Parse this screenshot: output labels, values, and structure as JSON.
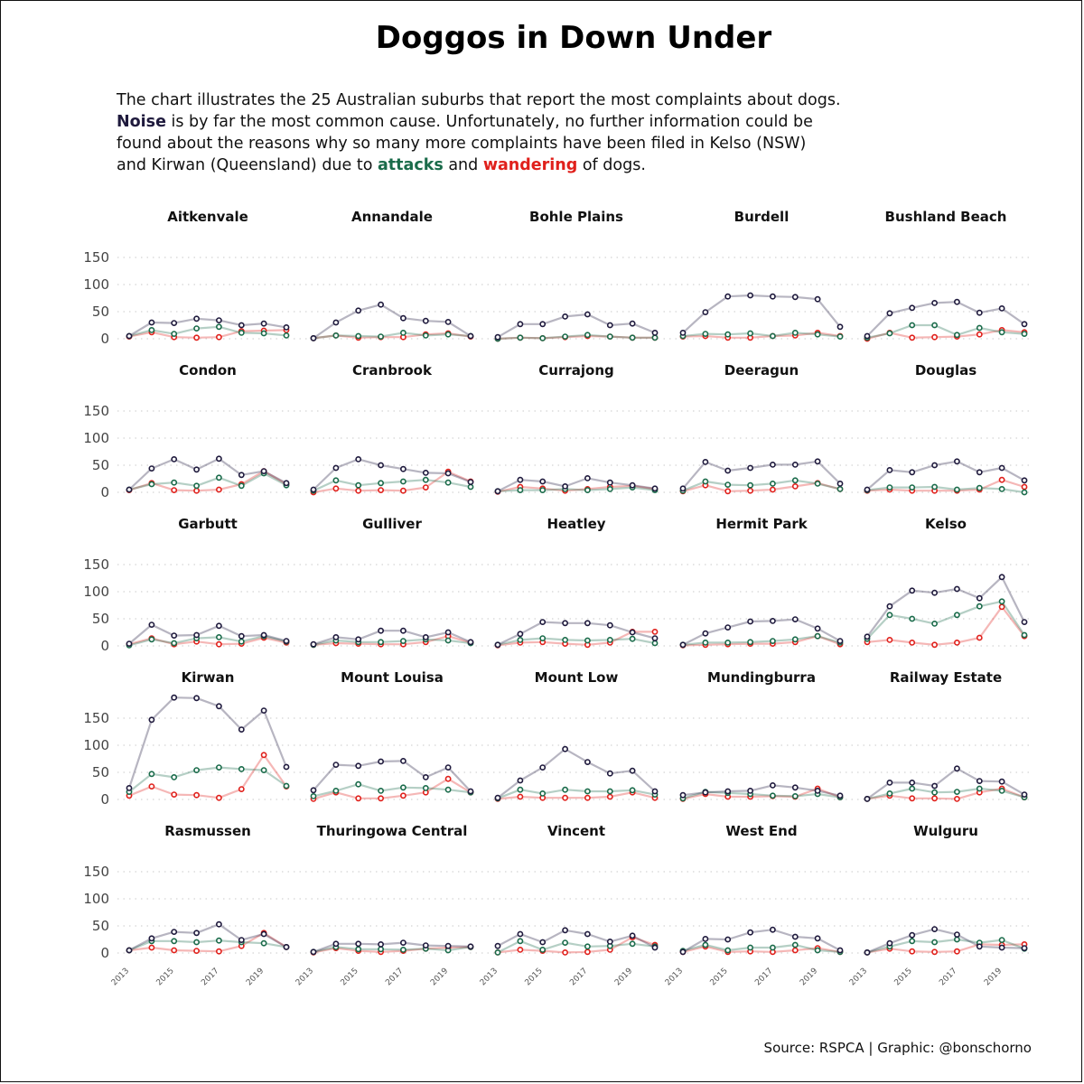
{
  "title": "Doggos in Down Under",
  "subtitle": {
    "line1": "The chart illustrates the 25 Australian suburbs that report the most complaints about dogs.",
    "noise": "Noise",
    "line2_rest": " is by far the most common cause. Unfortunately, no further information could be",
    "line3": "found about the reasons why so many more complaints have been filed in Kelso (NSW)",
    "line4_a": "and Kirwan (Queensland) due to ",
    "attacks": "attacks",
    "line4_b": " and ",
    "wandering": "wandering",
    "line4_c": " of dogs."
  },
  "caption": "Source: RSPCA | Graphic: @bonschorno",
  "colors": {
    "noise": "#1f1a3d",
    "attacks": "#1a6b4a",
    "wandering": "#e0201b",
    "grid": "#d4d4d4"
  },
  "chart_data": {
    "type": "line",
    "x": [
      2013,
      2014,
      2015,
      2016,
      2017,
      2018,
      2019,
      2020
    ],
    "x_tick_labels": [
      "2013",
      "2015",
      "2017",
      "2019"
    ],
    "ylim": [
      0,
      190
    ],
    "y_ticks": [
      0,
      50,
      100,
      150
    ],
    "grid": "horizontal dotted",
    "series_order": [
      "noise",
      "attacks",
      "wandering"
    ],
    "panels": [
      {
        "name": "Aitkenvale",
        "noise": [
          5,
          30,
          29,
          37,
          34,
          25,
          28,
          21
        ],
        "attacks": [
          5,
          16,
          9,
          19,
          22,
          11,
          10,
          6
        ],
        "wandering": [
          4,
          12,
          3,
          2,
          3,
          14,
          15,
          16
        ]
      },
      {
        "name": "Annandale",
        "noise": [
          1,
          30,
          52,
          63,
          38,
          33,
          31,
          5
        ],
        "attacks": [
          1,
          6,
          5,
          4,
          11,
          6,
          8,
          5
        ],
        "wandering": [
          1,
          6,
          2,
          3,
          3,
          8,
          10,
          4
        ]
      },
      {
        "name": "Bohle Plains",
        "noise": [
          3,
          27,
          27,
          41,
          45,
          25,
          28,
          11
        ],
        "attacks": [
          0,
          2,
          1,
          4,
          7,
          4,
          2,
          2
        ],
        "wandering": [
          0,
          2,
          1,
          3,
          5,
          4,
          2,
          2
        ]
      },
      {
        "name": "Burdell",
        "noise": [
          11,
          49,
          78,
          80,
          78,
          77,
          73,
          22
        ],
        "attacks": [
          5,
          9,
          8,
          10,
          5,
          11,
          8,
          4
        ],
        "wandering": [
          4,
          5,
          2,
          2,
          5,
          6,
          11,
          5
        ]
      },
      {
        "name": "Bushland Beach",
        "noise": [
          5,
          47,
          57,
          66,
          68,
          48,
          56,
          27
        ],
        "attacks": [
          2,
          10,
          25,
          25,
          7,
          20,
          12,
          9
        ],
        "wandering": [
          0,
          11,
          2,
          3,
          4,
          8,
          16,
          12
        ]
      },
      {
        "name": "Condon",
        "noise": [
          5,
          44,
          61,
          42,
          62,
          32,
          39,
          17
        ],
        "attacks": [
          5,
          15,
          18,
          12,
          27,
          12,
          35,
          13
        ],
        "wandering": [
          4,
          17,
          4,
          3,
          5,
          15,
          39,
          15
        ]
      },
      {
        "name": "Cranbrook",
        "noise": [
          5,
          45,
          61,
          50,
          43,
          36,
          35,
          19
        ],
        "attacks": [
          3,
          22,
          13,
          17,
          20,
          23,
          18,
          10
        ],
        "wandering": [
          0,
          7,
          3,
          4,
          3,
          9,
          38,
          20
        ]
      },
      {
        "name": "Currajong",
        "noise": [
          2,
          23,
          20,
          11,
          26,
          18,
          13,
          7
        ],
        "attacks": [
          2,
          4,
          4,
          6,
          4,
          6,
          9,
          4
        ],
        "wandering": [
          1,
          10,
          7,
          3,
          6,
          10,
          12,
          6
        ]
      },
      {
        "name": "Deeragun",
        "noise": [
          7,
          56,
          40,
          45,
          51,
          51,
          57,
          16
        ],
        "attacks": [
          3,
          20,
          14,
          13,
          16,
          22,
          16,
          6
        ],
        "wandering": [
          2,
          13,
          2,
          3,
          5,
          11,
          17,
          6
        ]
      },
      {
        "name": "Douglas",
        "noise": [
          5,
          41,
          37,
          50,
          57,
          37,
          45,
          22
        ],
        "attacks": [
          4,
          9,
          9,
          10,
          5,
          8,
          6,
          0
        ],
        "wandering": [
          3,
          5,
          3,
          3,
          3,
          5,
          23,
          10
        ]
      },
      {
        "name": "Garbutt",
        "noise": [
          4,
          39,
          19,
          20,
          37,
          18,
          20,
          9
        ],
        "attacks": [
          1,
          12,
          5,
          14,
          16,
          8,
          18,
          8
        ],
        "wandering": [
          3,
          14,
          3,
          8,
          3,
          4,
          15,
          6
        ]
      },
      {
        "name": "Gulliver",
        "noise": [
          3,
          16,
          12,
          28,
          28,
          16,
          25,
          7
        ],
        "attacks": [
          2,
          10,
          7,
          7,
          9,
          12,
          10,
          5
        ],
        "wandering": [
          2,
          5,
          4,
          3,
          3,
          7,
          18,
          6
        ]
      },
      {
        "name": "Heatley",
        "noise": [
          2,
          22,
          44,
          42,
          42,
          38,
          25,
          14
        ],
        "attacks": [
          2,
          11,
          14,
          11,
          10,
          11,
          13,
          5
        ],
        "wandering": [
          1,
          6,
          7,
          4,
          2,
          6,
          26,
          26
        ]
      },
      {
        "name": "Hermit Park",
        "noise": [
          2,
          23,
          34,
          45,
          46,
          49,
          32,
          9
        ],
        "attacks": [
          2,
          6,
          6,
          7,
          9,
          12,
          18,
          6
        ],
        "wandering": [
          1,
          2,
          3,
          4,
          4,
          7,
          18,
          3
        ]
      },
      {
        "name": "Kelso",
        "noise": [
          17,
          73,
          102,
          98,
          105,
          88,
          127,
          44
        ],
        "attacks": [
          13,
          57,
          50,
          41,
          57,
          73,
          82,
          20
        ],
        "wandering": [
          7,
          11,
          6,
          2,
          6,
          15,
          72,
          18
        ]
      },
      {
        "name": "Kirwan",
        "noise": [
          21,
          147,
          188,
          187,
          172,
          129,
          164,
          60
        ],
        "attacks": [
          14,
          47,
          41,
          54,
          59,
          56,
          54,
          25
        ],
        "wandering": [
          7,
          24,
          9,
          8,
          3,
          19,
          82,
          24
        ]
      },
      {
        "name": "Mount Louisa",
        "noise": [
          17,
          64,
          62,
          70,
          71,
          41,
          59,
          15
        ],
        "attacks": [
          6,
          16,
          28,
          16,
          22,
          21,
          18,
          13
        ],
        "wandering": [
          1,
          13,
          2,
          2,
          7,
          13,
          38,
          13
        ]
      },
      {
        "name": "Mount Low",
        "noise": [
          3,
          35,
          59,
          93,
          69,
          48,
          53,
          15
        ],
        "attacks": [
          2,
          18,
          11,
          18,
          15,
          15,
          17,
          9
        ],
        "wandering": [
          1,
          5,
          3,
          3,
          3,
          5,
          13,
          3
        ]
      },
      {
        "name": "Mundingburra",
        "noise": [
          8,
          13,
          15,
          16,
          26,
          22,
          16,
          7
        ],
        "attacks": [
          2,
          14,
          12,
          10,
          7,
          6,
          10,
          4
        ],
        "wandering": [
          1,
          10,
          5,
          5,
          6,
          5,
          20,
          4
        ]
      },
      {
        "name": "Railway Estate",
        "noise": [
          1,
          31,
          31,
          25,
          57,
          34,
          33,
          9
        ],
        "attacks": [
          1,
          11,
          20,
          13,
          14,
          20,
          16,
          4
        ],
        "wandering": [
          1,
          7,
          2,
          2,
          1,
          13,
          20,
          4
        ]
      },
      {
        "name": "Rasmussen",
        "noise": [
          5,
          27,
          39,
          37,
          53,
          24,
          35,
          11
        ],
        "attacks": [
          5,
          22,
          22,
          20,
          23,
          20,
          18,
          11
        ],
        "wandering": [
          5,
          10,
          5,
          4,
          3,
          13,
          37,
          11
        ]
      },
      {
        "name": "Thuringowa Central",
        "noise": [
          2,
          17,
          17,
          16,
          19,
          14,
          13,
          12
        ],
        "attacks": [
          2,
          11,
          7,
          7,
          6,
          8,
          5,
          11
        ],
        "wandering": [
          1,
          9,
          4,
          2,
          4,
          8,
          10,
          11
        ]
      },
      {
        "name": "Vincent",
        "noise": [
          13,
          35,
          20,
          42,
          35,
          21,
          32,
          10
        ],
        "attacks": [
          1,
          22,
          6,
          19,
          12,
          13,
          17,
          12
        ],
        "wandering": [
          1,
          6,
          4,
          1,
          2,
          6,
          29,
          15
        ]
      },
      {
        "name": "West End",
        "noise": [
          2,
          26,
          25,
          38,
          43,
          30,
          27,
          5
        ],
        "attacks": [
          4,
          15,
          5,
          10,
          10,
          15,
          5,
          2
        ],
        "wandering": [
          2,
          12,
          2,
          3,
          2,
          5,
          9,
          2
        ]
      },
      {
        "name": "Wulguru",
        "noise": [
          1,
          18,
          33,
          44,
          34,
          12,
          10,
          9
        ],
        "attacks": [
          1,
          12,
          22,
          20,
          25,
          19,
          24,
          8
        ],
        "wandering": [
          1,
          8,
          3,
          2,
          3,
          16,
          15,
          16
        ]
      }
    ]
  }
}
